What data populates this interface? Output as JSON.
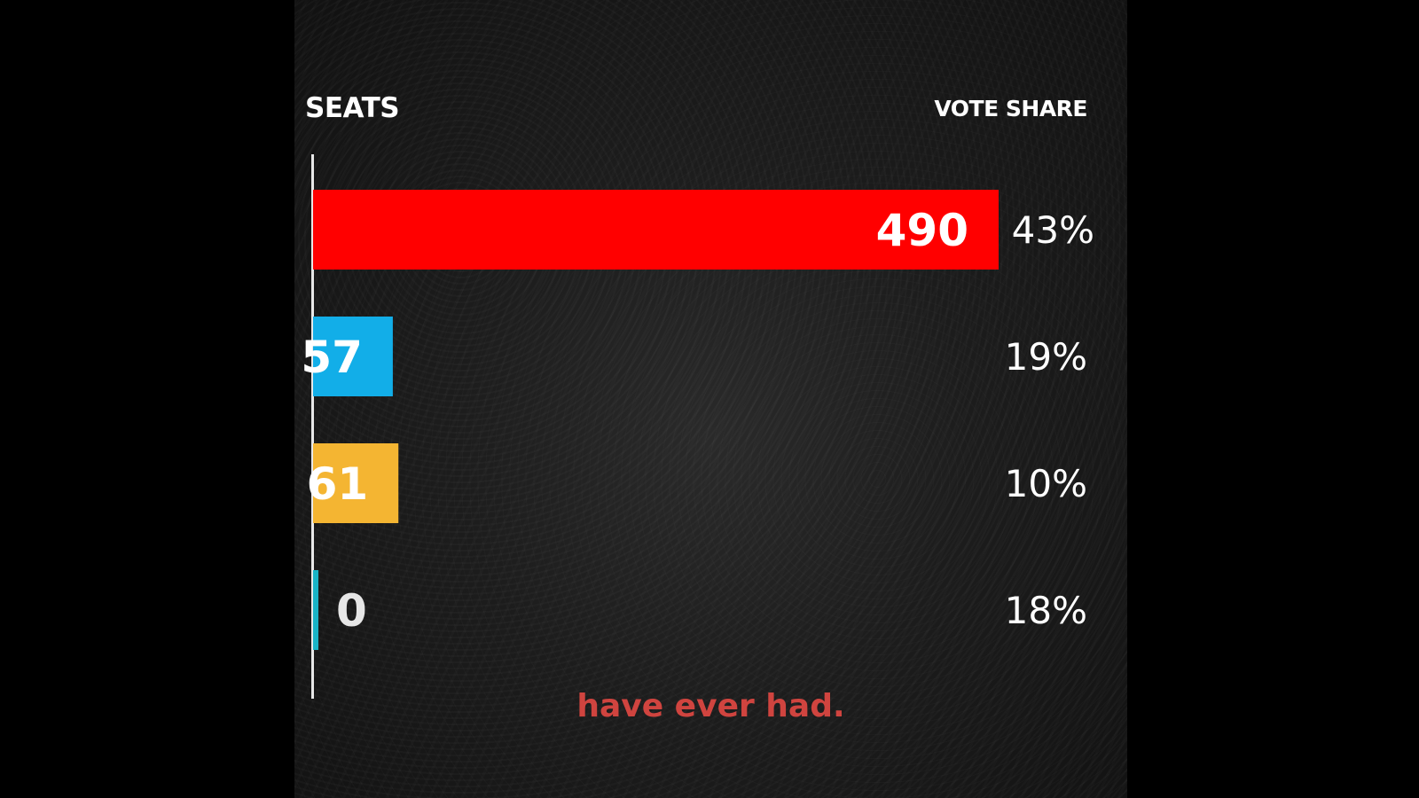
{
  "headers": {
    "seats": "SEATS",
    "vote_share": "VOTE SHARE"
  },
  "caption": "have ever had.",
  "chart_data": {
    "type": "bar",
    "orientation": "horizontal",
    "title": "",
    "xlabel": "SEATS",
    "ylabel": "",
    "xlim": [
      0,
      490
    ],
    "series": [
      {
        "name": "",
        "values": [
          490,
          57,
          61,
          0
        ],
        "colors": [
          "#ff0000",
          "#12aee8",
          "#f4b532",
          "#19b3c6"
        ],
        "label_colors": [
          "#ffffff",
          "#ffffff",
          "#ffffff",
          "#e6e6e6"
        ],
        "vote_share": [
          "43%",
          "19%",
          "10%",
          "18%"
        ]
      }
    ],
    "data_labels": [
      "490",
      "57",
      "61",
      "0"
    ],
    "grid": false,
    "legend": "none"
  }
}
